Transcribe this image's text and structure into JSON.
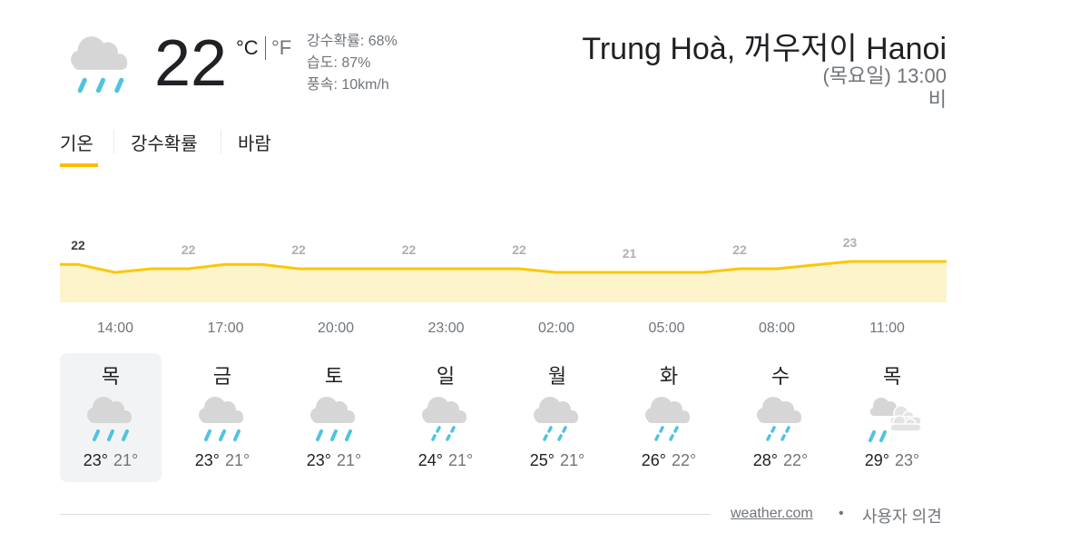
{
  "current": {
    "icon": "heavy-rain",
    "temp": "22",
    "unit_c": "°C",
    "unit_f": "°F",
    "precip": "강수확률: 68%",
    "humidity": "습도: 87%",
    "wind": "풍속: 10km/h"
  },
  "header": {
    "location": "Trung Hoà, 꺼우저이 Hanoi",
    "time": "(목요일) 13:00",
    "condition": "비"
  },
  "tabs": [
    {
      "label": "기온",
      "active": true
    },
    {
      "label": "강수확률",
      "active": false
    },
    {
      "label": "바람",
      "active": false
    }
  ],
  "colors": {
    "line": "#fbc707",
    "fill": "#fdf4cc",
    "rain": "#4fc3e0",
    "cloud": "#d6d6d6",
    "tab_indicator": "#fbbc04"
  },
  "chart_data": {
    "type": "area",
    "hourly_temps": [
      22.3,
      21.2,
      21.7,
      21.7,
      22.3,
      22.3,
      21.7,
      21.7,
      21.7,
      21.7,
      21.7,
      21.7,
      21.7,
      21.2,
      21.2,
      21.2,
      21.2,
      21.2,
      21.7,
      21.7,
      22.2,
      22.7,
      22.7,
      22.7
    ],
    "value_labels": [
      "22",
      "22",
      "22",
      "22",
      "22",
      "21",
      "22",
      "23"
    ],
    "time_labels": [
      "14:00",
      "17:00",
      "20:00",
      "23:00",
      "02:00",
      "05:00",
      "08:00",
      "11:00"
    ]
  },
  "days": [
    {
      "day": "목",
      "icon": "heavy-rain",
      "hi": "23°",
      "lo": "21°",
      "selected": true
    },
    {
      "day": "금",
      "icon": "heavy-rain",
      "hi": "23°",
      "lo": "21°"
    },
    {
      "day": "토",
      "icon": "heavy-rain",
      "hi": "23°",
      "lo": "21°"
    },
    {
      "day": "일",
      "icon": "light-rain",
      "hi": "24°",
      "lo": "21°"
    },
    {
      "day": "월",
      "icon": "light-rain",
      "hi": "25°",
      "lo": "21°"
    },
    {
      "day": "화",
      "icon": "light-rain",
      "hi": "26°",
      "lo": "22°"
    },
    {
      "day": "수",
      "icon": "light-rain",
      "hi": "28°",
      "lo": "22°"
    },
    {
      "day": "목",
      "icon": "partly-cloudy-rain",
      "hi": "29°",
      "lo": "23°"
    }
  ],
  "footer": {
    "source": "weather.com",
    "bullet": "•",
    "feedback": "사용자 의견"
  }
}
